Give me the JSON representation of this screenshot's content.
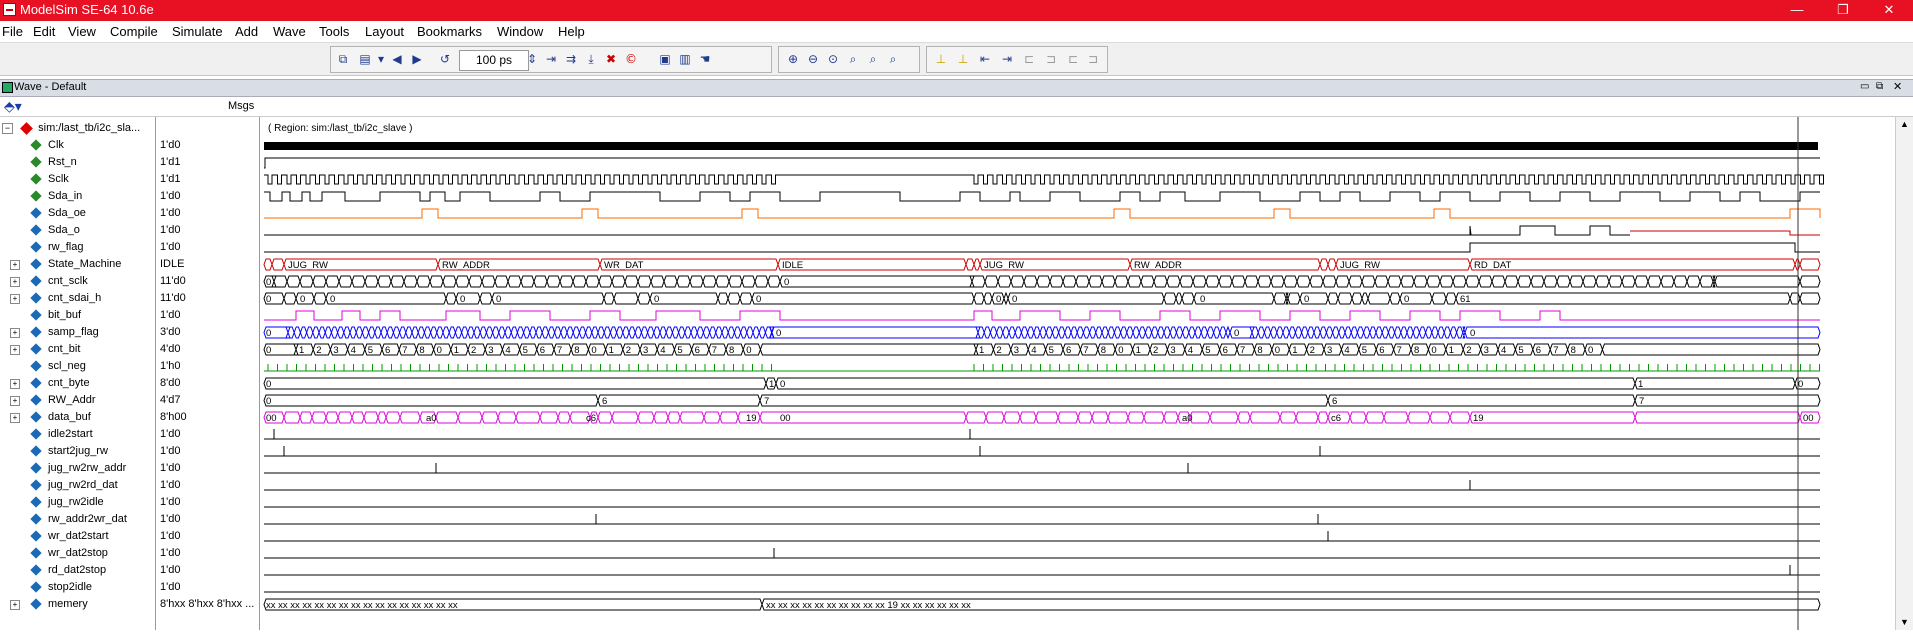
{
  "window": {
    "title": "ModelSim SE-64 10.6e",
    "min": "—",
    "max": "❐",
    "close": "✕"
  },
  "menu": [
    "File",
    "Edit",
    "View",
    "Compile",
    "Simulate",
    "Add",
    "Wave",
    "Tools",
    "Layout",
    "Bookmarks",
    "Window",
    "Help"
  ],
  "toolbar": {
    "time_value": "100 ps"
  },
  "pane": {
    "title": "Wave - Default",
    "msgs_header": "Msgs",
    "region_text": "( Region: sim:/last_tb/i2c_slave )"
  },
  "colors": {
    "signal": "#000000",
    "orange": "#ff6a00",
    "magenta": "#e000e0",
    "blue": "#0000ff",
    "green": "#009900",
    "red": "#cc0000"
  },
  "signals": [
    {
      "name": "sim:/last_tb/i2c_sla...",
      "value": "",
      "icon": "diamond-red",
      "expand": "−"
    },
    {
      "name": "Clk",
      "value": "1'd0",
      "icon": "in"
    },
    {
      "name": "Rst_n",
      "value": "1'd1",
      "icon": "in"
    },
    {
      "name": "Sclk",
      "value": "1'd1",
      "icon": "in"
    },
    {
      "name": "Sda_in",
      "value": "1'd0",
      "icon": "in"
    },
    {
      "name": "Sda_oe",
      "value": "1'd0",
      "icon": "out"
    },
    {
      "name": "Sda_o",
      "value": "1'd0",
      "icon": "out"
    },
    {
      "name": "rw_flag",
      "value": "1'd0",
      "icon": "out"
    },
    {
      "name": "State_Machine",
      "value": "IDLE",
      "icon": "out",
      "expand": "+"
    },
    {
      "name": "cnt_sclk",
      "value": "11'd0",
      "icon": "out",
      "expand": "+"
    },
    {
      "name": "cnt_sdai_h",
      "value": "11'd0",
      "icon": "out",
      "expand": "+"
    },
    {
      "name": "bit_buf",
      "value": "1'd0",
      "icon": "out"
    },
    {
      "name": "samp_flag",
      "value": "3'd0",
      "icon": "out",
      "expand": "+"
    },
    {
      "name": "cnt_bit",
      "value": "4'd0",
      "icon": "out",
      "expand": "+"
    },
    {
      "name": "scl_neg",
      "value": "1'h0",
      "icon": "out"
    },
    {
      "name": "cnt_byte",
      "value": "8'd0",
      "icon": "out",
      "expand": "+"
    },
    {
      "name": "RW_Addr",
      "value": "4'd7",
      "icon": "out",
      "expand": "+"
    },
    {
      "name": "data_buf",
      "value": "8'h00",
      "icon": "out",
      "expand": "+"
    },
    {
      "name": "idle2start",
      "value": "1'd0",
      "icon": "out"
    },
    {
      "name": "start2jug_rw",
      "value": "1'd0",
      "icon": "out"
    },
    {
      "name": "jug_rw2rw_addr",
      "value": "1'd0",
      "icon": "out"
    },
    {
      "name": "jug_rw2rd_dat",
      "value": "1'd0",
      "icon": "out"
    },
    {
      "name": "jug_rw2idle",
      "value": "1'd0",
      "icon": "out"
    },
    {
      "name": "rw_addr2wr_dat",
      "value": "1'd0",
      "icon": "out"
    },
    {
      "name": "wr_dat2start",
      "value": "1'd0",
      "icon": "out"
    },
    {
      "name": "wr_dat2stop",
      "value": "1'd0",
      "icon": "out"
    },
    {
      "name": "rd_dat2stop",
      "value": "1'd0",
      "icon": "out"
    },
    {
      "name": "stop2idle",
      "value": "1'd0",
      "icon": "out"
    },
    {
      "name": "memery",
      "value": "8'hxx 8'hxx 8'hxx ...",
      "icon": "out",
      "expand": "+"
    }
  ],
  "bus_labels": {
    "state": [
      "JUG_RW",
      "RW_ADDR",
      "WR_DAT",
      "IDLE",
      "JUG_RW",
      "RW_ADDR",
      "JUG_RW",
      "RD_DAT"
    ],
    "cnt_sclk": [
      "0",
      "0"
    ],
    "cnt_sdai_h": [
      "0",
      "0",
      "0",
      "0",
      "0",
      "0",
      "0",
      "0",
      "0",
      "0",
      "0",
      "0",
      "61"
    ],
    "samp_flag": [
      "0",
      "0",
      "0",
      "0"
    ],
    "cnt_bit_a": [
      "0",
      "1",
      "2",
      "3",
      "4",
      "5",
      "6",
      "7",
      "8",
      "0",
      "1",
      "2",
      "3",
      "4",
      "5",
      "6",
      "7",
      "8",
      "0",
      "1",
      "2",
      "3",
      "4",
      "5",
      "6",
      "7",
      "8",
      "0"
    ],
    "cnt_bit_b": [
      "1",
      "2",
      "3",
      "4",
      "5",
      "6",
      "7",
      "8",
      "0",
      "1",
      "2",
      "3",
      "4",
      "5",
      "6",
      "7",
      "8",
      "0",
      "1",
      "2",
      "3",
      "4",
      "5",
      "6",
      "7",
      "8",
      "0",
      "1",
      "2",
      "3",
      "4",
      "5",
      "6",
      "7",
      "8",
      "0"
    ],
    "cnt_byte": [
      "0",
      "1",
      "0",
      "1",
      "0"
    ],
    "rw_addr": [
      "0",
      "6",
      "7",
      "6",
      "7"
    ],
    "data_buf": [
      "00",
      "a0",
      "c6",
      "19",
      "00",
      "a0",
      "c6",
      "19",
      "00"
    ],
    "memery": [
      "xx xx xx xx xx xx xx xx xx xx xx xx xx xx xx xx",
      "xx xx xx xx xx xx xx xx xx xx 19 xx xx xx xx xx xx"
    ]
  }
}
